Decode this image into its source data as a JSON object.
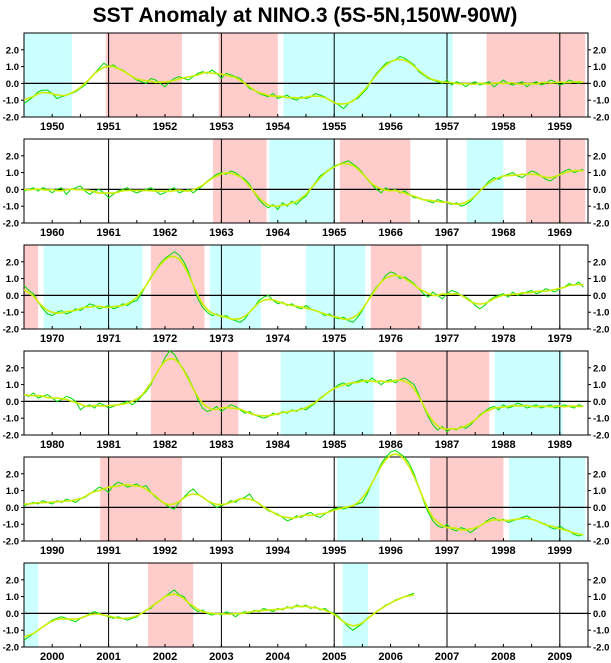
{
  "chart_data": {
    "type": "line",
    "title": "SST Anomaly at NINO.3 (5S-5N,150W-90W)",
    "ylim": [
      -2.0,
      3.0
    ],
    "yticks": [
      "2.0",
      "1.0",
      "0.0",
      "-1.0",
      "-2.0"
    ],
    "colors": {
      "monthly": "#00dd00",
      "smoothed": "#ccee00",
      "warm": "#ffcccc",
      "cold": "#ccffff",
      "axis": "#000000"
    },
    "series": [
      {
        "values_by_decade": "see rows"
      }
    ],
    "rows": [
      {
        "years": [
          "1950",
          "1951",
          "1952",
          "1953",
          "1954",
          "1955",
          "1956",
          "1957",
          "1958",
          "1959"
        ],
        "shading": [
          {
            "start": 1950.0,
            "end": 1950.85,
            "phase": "cold"
          },
          {
            "start": 1951.45,
            "end": 1952.8,
            "phase": "warm"
          },
          {
            "start": 1953.45,
            "end": 1954.5,
            "phase": "warm"
          },
          {
            "start": 1954.6,
            "end": 1957.6,
            "phase": "cold"
          },
          {
            "start": 1958.2,
            "end": 1959.95,
            "phase": "warm"
          }
        ],
        "monthly": [
          -1.2,
          -1.0,
          -0.8,
          -0.5,
          -0.4,
          -0.4,
          -0.6,
          -0.9,
          -0.8,
          -0.7,
          -0.6,
          -0.5,
          -0.3,
          -0.1,
          0.3,
          0.6,
          0.9,
          1.2,
          1.0,
          1.1,
          0.9,
          0.8,
          0.6,
          0.4,
          0.2,
          0.1,
          0.0,
          0.3,
          0.2,
          0.0,
          -0.2,
          0.1,
          0.3,
          0.4,
          0.3,
          0.2,
          0.4,
          0.6,
          0.7,
          0.6,
          0.8,
          0.6,
          0.3,
          0.6,
          0.5,
          0.4,
          0.3,
          0.0,
          -0.3,
          -0.4,
          -0.6,
          -0.7,
          -0.8,
          -0.6,
          -0.9,
          -0.8,
          -0.7,
          -0.9,
          -1.0,
          -0.8,
          -0.9,
          -0.8,
          -0.6,
          -0.7,
          -0.8,
          -1.0,
          -1.1,
          -1.3,
          -1.5,
          -1.2,
          -1.0,
          -0.9,
          -0.6,
          -0.3,
          0.2,
          0.6,
          0.9,
          1.2,
          1.3,
          1.4,
          1.6,
          1.5,
          1.3,
          1.1,
          0.7,
          0.5,
          0.3,
          0.2,
          0.1,
          0.0,
          0.2,
          -0.1,
          0.1,
          0.0,
          -0.2,
          0.0,
          0.1,
          -0.1,
          0.0,
          0.1,
          -0.2,
          0.0,
          0.2,
          0.0,
          -0.1,
          0.0,
          0.1,
          -0.2,
          0.0,
          0.1,
          -0.1,
          0.0,
          0.2,
          0.1,
          -0.1,
          0.0,
          0.2,
          0.1,
          0.0,
          0.1
        ]
      },
      {
        "years": [
          "1960",
          "1961",
          "1962",
          "1963",
          "1964",
          "1965",
          "1966",
          "1967",
          "1968",
          "1969"
        ],
        "shading": [
          {
            "start": 1963.35,
            "end": 1964.3,
            "phase": "warm"
          },
          {
            "start": 1964.35,
            "end": 1965.5,
            "phase": "cold"
          },
          {
            "start": 1965.6,
            "end": 1966.85,
            "phase": "warm"
          },
          {
            "start": 1967.85,
            "end": 1968.5,
            "phase": "cold"
          },
          {
            "start": 1968.9,
            "end": 1969.95,
            "phase": "warm"
          }
        ],
        "monthly": [
          -0.1,
          0.0,
          0.1,
          -0.1,
          0.1,
          0.0,
          -0.2,
          0.0,
          0.1,
          -0.3,
          0.0,
          0.1,
          0.2,
          -0.1,
          -0.3,
          -0.1,
          0.0,
          -0.2,
          -0.5,
          -0.3,
          -0.1,
          0.0,
          0.1,
          -0.1,
          -0.2,
          -0.1,
          0.0,
          0.1,
          -0.1,
          -0.3,
          -0.2,
          0.0,
          0.1,
          -0.2,
          -0.1,
          0.0,
          -0.2,
          0.0,
          0.2,
          0.5,
          0.7,
          0.9,
          1.0,
          0.9,
          1.1,
          1.0,
          0.8,
          0.6,
          0.3,
          -0.2,
          -0.6,
          -0.9,
          -1.1,
          -0.9,
          -1.2,
          -0.8,
          -1.0,
          -0.7,
          -0.9,
          -0.6,
          -0.4,
          0.0,
          0.4,
          0.8,
          1.0,
          1.2,
          1.4,
          1.5,
          1.6,
          1.7,
          1.5,
          1.3,
          1.0,
          0.6,
          0.3,
          0.0,
          -0.2,
          0.1,
          -0.1,
          0.0,
          -0.2,
          -0.1,
          -0.3,
          -0.5,
          -0.5,
          -0.6,
          -0.7,
          -0.8,
          -0.6,
          -0.7,
          -0.8,
          -0.9,
          -0.8,
          -1.0,
          -0.9,
          -0.7,
          -0.4,
          -0.1,
          0.2,
          0.5,
          0.7,
          0.6,
          0.8,
          0.9,
          1.0,
          0.8,
          0.7,
          0.9,
          1.1,
          1.0,
          0.8,
          0.6,
          0.5,
          0.7,
          0.9,
          1.1,
          1.2,
          1.0,
          1.1,
          1.2
        ]
      },
      {
        "years": [
          "1970",
          "1971",
          "1972",
          "1973",
          "1974",
          "1975",
          "1976",
          "1977",
          "1978",
          "1979"
        ],
        "shading": [
          {
            "start": 1970.0,
            "end": 1970.25,
            "phase": "warm"
          },
          {
            "start": 1970.35,
            "end": 1972.1,
            "phase": "cold"
          },
          {
            "start": 1972.25,
            "end": 1973.2,
            "phase": "warm"
          },
          {
            "start": 1973.3,
            "end": 1974.2,
            "phase": "cold"
          },
          {
            "start": 1975.0,
            "end": 1976.05,
            "phase": "cold"
          },
          {
            "start": 1976.15,
            "end": 1977.05,
            "phase": "warm"
          }
        ],
        "monthly": [
          0.6,
          0.3,
          0.1,
          -0.4,
          -0.8,
          -1.1,
          -1.2,
          -1.0,
          -0.9,
          -1.1,
          -1.0,
          -0.8,
          -0.9,
          -0.7,
          -0.5,
          -0.6,
          -0.8,
          -0.7,
          -0.6,
          -0.8,
          -0.7,
          -0.5,
          -0.6,
          -0.4,
          -0.3,
          0.1,
          0.6,
          1.1,
          1.5,
          1.9,
          2.2,
          2.4,
          2.6,
          2.4,
          2.0,
          1.4,
          0.6,
          -0.2,
          -0.7,
          -1.0,
          -1.2,
          -1.1,
          -1.3,
          -1.2,
          -1.4,
          -1.5,
          -1.6,
          -1.4,
          -1.0,
          -0.7,
          -0.3,
          -0.1,
          0.0,
          -0.3,
          -0.5,
          -0.4,
          -0.6,
          -0.5,
          -0.7,
          -0.8,
          -0.6,
          -0.8,
          -0.9,
          -1.0,
          -1.2,
          -1.1,
          -1.3,
          -1.4,
          -1.3,
          -1.5,
          -1.6,
          -1.3,
          -0.9,
          -0.4,
          0.1,
          0.5,
          0.8,
          1.2,
          1.4,
          1.3,
          1.0,
          1.1,
          0.9,
          0.7,
          0.4,
          0.1,
          -0.1,
          0.2,
          0.0,
          -0.2,
          0.1,
          0.3,
          0.2,
          0.0,
          -0.1,
          -0.3,
          -0.6,
          -0.8,
          -0.6,
          -0.3,
          -0.1,
          0.0,
          0.1,
          -0.1,
          0.2,
          0.0,
          0.1,
          0.2,
          0.3,
          0.1,
          0.2,
          0.4,
          0.3,
          0.2,
          0.4,
          0.5,
          0.7,
          0.6,
          0.8,
          0.5
        ]
      },
      {
        "years": [
          "1980",
          "1981",
          "1982",
          "1983",
          "1984",
          "1985",
          "1986",
          "1987",
          "1988",
          "1989"
        ],
        "shading": [
          {
            "start": 1982.25,
            "end": 1983.8,
            "phase": "warm"
          },
          {
            "start": 1984.55,
            "end": 1986.2,
            "phase": "cold"
          },
          {
            "start": 1986.6,
            "end": 1988.25,
            "phase": "warm"
          },
          {
            "start": 1988.35,
            "end": 1989.55,
            "phase": "cold"
          }
        ],
        "monthly": [
          0.4,
          0.3,
          0.5,
          0.2,
          0.3,
          0.4,
          0.2,
          0.0,
          0.1,
          0.3,
          0.2,
          0.0,
          -0.5,
          -0.3,
          -0.2,
          -0.4,
          -0.1,
          -0.2,
          -0.4,
          -0.3,
          -0.2,
          -0.1,
          0.0,
          -0.2,
          0.0,
          0.3,
          0.6,
          1.0,
          1.6,
          2.0,
          2.6,
          3.0,
          2.8,
          2.3,
          1.9,
          1.4,
          0.8,
          0.1,
          -0.4,
          -0.6,
          -0.5,
          -0.3,
          -0.6,
          -0.4,
          -0.2,
          -0.3,
          -0.5,
          -0.7,
          -0.6,
          -0.8,
          -0.9,
          -1.0,
          -0.9,
          -0.7,
          -0.8,
          -0.6,
          -0.7,
          -0.5,
          -0.6,
          -0.4,
          -0.5,
          -0.3,
          -0.1,
          0.2,
          0.4,
          0.6,
          0.8,
          1.0,
          1.1,
          0.9,
          1.1,
          1.2,
          1.3,
          1.1,
          1.4,
          1.2,
          1.0,
          1.2,
          1.3,
          1.1,
          1.3,
          1.4,
          1.2,
          1.0,
          0.4,
          -0.3,
          -0.9,
          -1.4,
          -1.7,
          -1.5,
          -1.8,
          -1.6,
          -1.7,
          -1.5,
          -1.6,
          -1.4,
          -1.1,
          -0.8,
          -0.6,
          -0.4,
          -0.3,
          -0.5,
          -0.2,
          -0.4,
          -0.3,
          -0.1,
          -0.2,
          -0.4,
          -0.3,
          -0.2,
          -0.4,
          -0.3,
          -0.2,
          -0.4,
          -0.3,
          -0.2,
          -0.3,
          -0.4,
          -0.2,
          -0.3
        ]
      },
      {
        "years": [
          "1990",
          "1991",
          "1992",
          "1993",
          "1994",
          "1995",
          "1996",
          "1997",
          "1998",
          "1999"
        ],
        "shading": [
          {
            "start": 1991.35,
            "end": 1992.8,
            "phase": "warm"
          },
          {
            "start": 1995.55,
            "end": 1996.3,
            "phase": "cold"
          },
          {
            "start": 1997.2,
            "end": 1998.5,
            "phase": "warm"
          },
          {
            "start": 1998.6,
            "end": 1999.95,
            "phase": "cold"
          }
        ],
        "monthly": [
          0.1,
          0.2,
          0.3,
          0.2,
          0.4,
          0.3,
          0.2,
          0.4,
          0.3,
          0.5,
          0.4,
          0.3,
          0.5,
          0.6,
          0.8,
          1.0,
          1.2,
          1.1,
          0.9,
          1.3,
          1.5,
          1.4,
          1.2,
          1.3,
          1.4,
          1.2,
          1.3,
          0.9,
          0.6,
          0.4,
          0.2,
          0.0,
          -0.1,
          0.3,
          0.6,
          0.9,
          1.1,
          0.8,
          0.6,
          0.4,
          0.2,
          0.0,
          0.1,
          0.2,
          0.4,
          0.3,
          0.5,
          0.6,
          0.8,
          0.4,
          0.2,
          0.0,
          -0.2,
          -0.3,
          -0.4,
          -0.6,
          -0.8,
          -0.7,
          -0.5,
          -0.6,
          -0.4,
          -0.3,
          -0.5,
          -0.6,
          -0.4,
          -0.2,
          -0.1,
          0.0,
          -0.1,
          0.0,
          0.1,
          0.2,
          0.3,
          0.8,
          1.4,
          2.0,
          2.6,
          3.0,
          3.3,
          3.4,
          3.2,
          3.0,
          2.6,
          2.0,
          1.2,
          0.4,
          -0.3,
          -0.8,
          -1.1,
          -1.2,
          -1.0,
          -1.3,
          -1.4,
          -1.2,
          -1.3,
          -1.5,
          -1.3,
          -1.1,
          -0.9,
          -0.7,
          -0.6,
          -0.8,
          -0.7,
          -0.9,
          -0.8,
          -0.7,
          -0.6,
          -0.5,
          -0.7,
          -0.8,
          -0.9,
          -1.0,
          -1.2,
          -1.3,
          -1.1,
          -1.3,
          -1.4,
          -1.6,
          -1.7,
          -1.6
        ]
      },
      {
        "years": [
          "2000",
          "2001",
          "2002",
          "2003",
          "2004",
          "2005",
          "2006",
          "2007",
          "2008",
          "2009"
        ],
        "shading": [
          {
            "start": 2000.0,
            "end": 2000.25,
            "phase": "cold"
          },
          {
            "start": 2002.2,
            "end": 2003.0,
            "phase": "warm"
          },
          {
            "start": 2005.65,
            "end": 2006.1,
            "phase": "cold"
          }
        ],
        "monthly": [
          -1.6,
          -1.4,
          -1.2,
          -1.0,
          -0.8,
          -0.6,
          -0.4,
          -0.3,
          -0.2,
          -0.3,
          -0.4,
          -0.5,
          -0.3,
          -0.2,
          0.0,
          0.1,
          0.0,
          -0.1,
          -0.2,
          -0.3,
          -0.2,
          -0.3,
          -0.4,
          -0.3,
          -0.2,
          0.0,
          0.2,
          0.3,
          0.6,
          0.8,
          1.0,
          1.2,
          1.4,
          1.1,
          1.0,
          0.6,
          0.3,
          0.1,
          0.2,
          0.0,
          -0.1,
          0.0,
          -0.1,
          0.1,
          0.0,
          -0.2,
          0.0,
          0.1,
          0.0,
          0.2,
          0.1,
          0.3,
          0.2,
          0.1,
          0.3,
          0.2,
          0.4,
          0.3,
          0.5,
          0.4,
          0.5,
          0.3,
          0.4,
          0.2,
          0.3,
          0.1,
          0.0,
          -0.2,
          -0.5,
          -0.8,
          -1.0,
          -0.8,
          -0.6,
          -0.3,
          -0.1,
          0.1,
          0.3,
          0.5,
          0.6,
          0.8,
          0.9,
          1.0,
          1.1,
          1.2
        ]
      }
    ]
  }
}
